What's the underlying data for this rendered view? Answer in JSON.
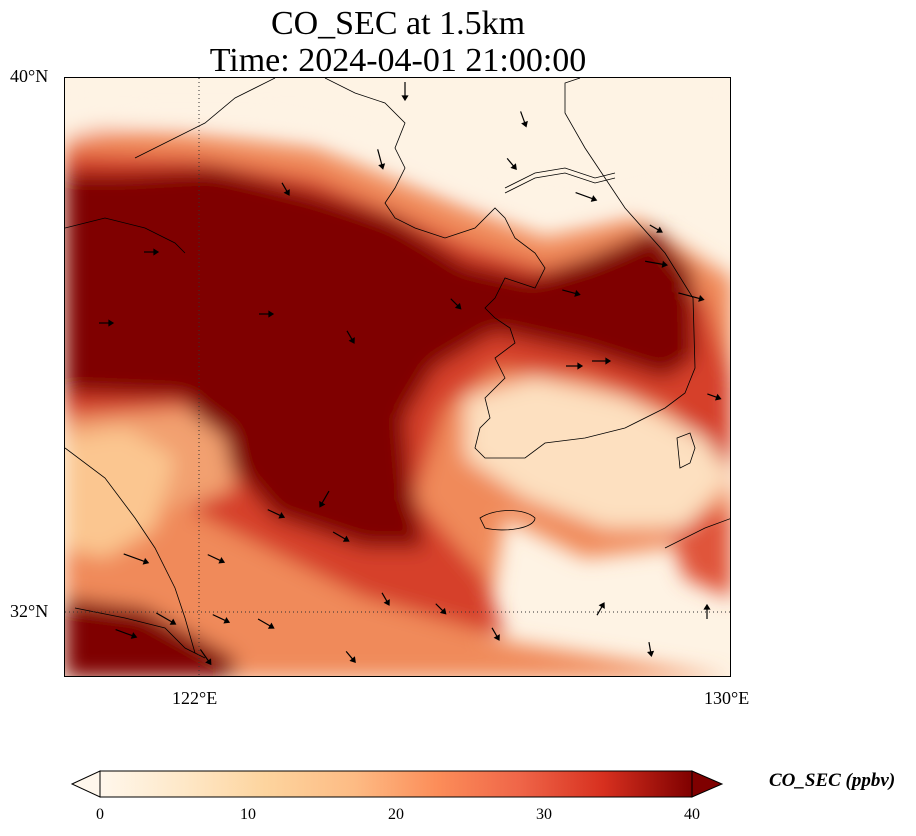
{
  "title": {
    "line1": "CO_SEC at 1.5km",
    "line2": "Time: 2024-04-01 21:00:00"
  },
  "axes": {
    "lat_labels": [
      "40°N",
      "32°N"
    ],
    "lon_labels": [
      "122°E",
      "130°E"
    ],
    "lat_range": [
      31,
      40
    ],
    "lon_range": [
      120,
      130
    ]
  },
  "colorbar": {
    "label": "CO_SEC (ppbv)",
    "ticks": [
      "0",
      "10",
      "20",
      "30",
      "40"
    ],
    "range": [
      0,
      40
    ],
    "colormap": "OrRd",
    "extend": "both"
  },
  "colors": {
    "low": "#fff7ec",
    "mid": "#fc8d59",
    "high": "#7f0000"
  },
  "map": {
    "variable": "CO_SEC",
    "level": "1.5km",
    "overlay": "wind vectors",
    "gridlines": "dotted"
  }
}
